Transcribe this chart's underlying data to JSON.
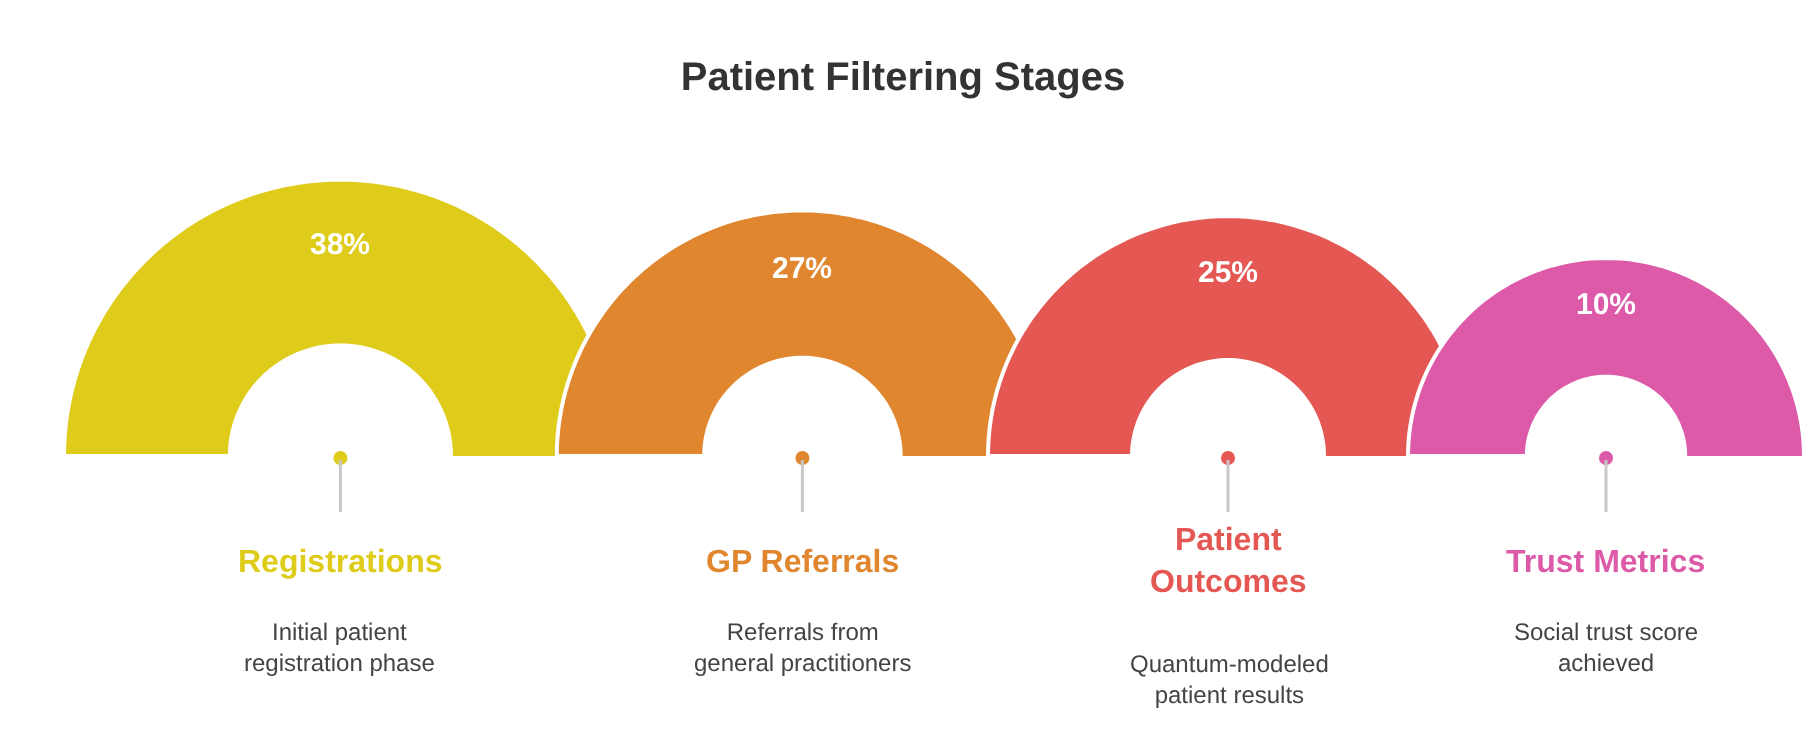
{
  "chart_data": {
    "type": "other",
    "title": "Patient Filtering Stages",
    "categories": [
      "Registrations",
      "GP Referrals",
      "Patient\nOutcomes",
      "Trust Metrics"
    ],
    "values": [
      38,
      27,
      25,
      10
    ],
    "value_labels": [
      "38%",
      "27%",
      "25%",
      "10%"
    ],
    "colors": [
      "#dfcb1a",
      "#e0862f",
      "#e45752",
      "#dc5aa8"
    ],
    "annotations": [
      "Initial patient\nregistration phase",
      "Referrals from\ngeneral practitioners",
      "Quantum-modeled\npatient results",
      "Social trust score\nachieved"
    ]
  }
}
